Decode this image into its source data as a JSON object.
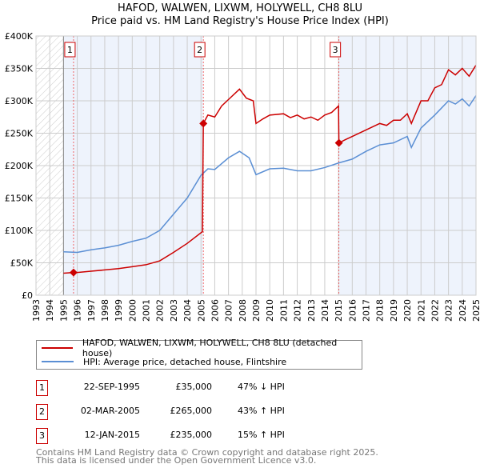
{
  "chart_data": {
    "type": "line",
    "title": "HAFOD, WALWEN, LIXWM, HOLYWELL, CH8 8LU",
    "subtitle": "Price paid vs. HM Land Registry's House Price Index (HPI)",
    "xlim": [
      1993,
      2025
    ],
    "ylim": [
      0,
      400000
    ],
    "x_ticks": [
      "1993",
      "1994",
      "1995",
      "1996",
      "1997",
      "1998",
      "1999",
      "2000",
      "2001",
      "2002",
      "2003",
      "2004",
      "2005",
      "2006",
      "2007",
      "2008",
      "2009",
      "2010",
      "2011",
      "2012",
      "2013",
      "2014",
      "2015",
      "2016",
      "2017",
      "2018",
      "2019",
      "2020",
      "2021",
      "2022",
      "2023",
      "2024",
      "2025"
    ],
    "y_ticks": [
      {
        "v": 0,
        "label": "£0"
      },
      {
        "v": 50000,
        "label": "£50K"
      },
      {
        "v": 100000,
        "label": "£100K"
      },
      {
        "v": 150000,
        "label": "£150K"
      },
      {
        "v": 200000,
        "label": "£200K"
      },
      {
        "v": 250000,
        "label": "£250K"
      },
      {
        "v": 300000,
        "label": "£300K"
      },
      {
        "v": 350000,
        "label": "£350K"
      },
      {
        "v": 400000,
        "label": "£400K"
      }
    ],
    "series": [
      {
        "name": "HAFOD, WALWEN, LIXWM, HOLYWELL, CH8 8LU (detached house)",
        "color": "#cc0000",
        "x": [
          1995,
          1995.73,
          1996,
          1997,
          1998,
          1999,
          2000,
          2001,
          2002,
          2003,
          2004,
          2005.1,
          2005.17,
          2005.5,
          2006,
          2006.5,
          2007,
          2007.8,
          2008.3,
          2008.8,
          2009,
          2009.5,
          2010,
          2011,
          2011.5,
          2012,
          2012.5,
          2013,
          2013.5,
          2014,
          2014.5,
          2015,
          2015.03,
          2015.5,
          2016,
          2017,
          2018,
          2018.5,
          2019,
          2019.5,
          2020,
          2020.3,
          2021,
          2021.5,
          2022,
          2022.5,
          2023,
          2023.5,
          2024,
          2024.5,
          2025
        ],
        "y": [
          34000,
          35000,
          35000,
          37000,
          39000,
          41000,
          44000,
          47000,
          53000,
          66000,
          80000,
          98000,
          265000,
          278000,
          275000,
          292000,
          302000,
          318000,
          304000,
          300000,
          265000,
          272000,
          278000,
          280000,
          274000,
          278000,
          272000,
          275000,
          270000,
          278000,
          282000,
          292000,
          235000,
          240000,
          245000,
          255000,
          265000,
          262000,
          270000,
          270000,
          280000,
          265000,
          300000,
          300000,
          320000,
          325000,
          348000,
          340000,
          350000,
          338000,
          355000
        ]
      },
      {
        "name": "HPI: Average price, detached house, Flintshire",
        "color": "#5b8fd4",
        "x": [
          1995,
          1996,
          1997,
          1998,
          1999,
          2000,
          2001,
          2002,
          2003,
          2004,
          2005,
          2005.5,
          2006,
          2007,
          2007.8,
          2008.5,
          2009,
          2010,
          2011,
          2012,
          2013,
          2014,
          2015,
          2016,
          2017,
          2018,
          2019,
          2020,
          2020.3,
          2021,
          2022,
          2023,
          2023.5,
          2024,
          2024.5,
          2025
        ],
        "y": [
          67000,
          66000,
          70000,
          73000,
          77000,
          83000,
          88000,
          100000,
          125000,
          150000,
          185000,
          195000,
          194000,
          212000,
          222000,
          212000,
          186000,
          195000,
          196000,
          192000,
          192000,
          197000,
          204000,
          210000,
          222000,
          232000,
          235000,
          245000,
          228000,
          258000,
          278000,
          300000,
          295000,
          303000,
          292000,
          308000
        ]
      }
    ],
    "sales": [
      {
        "n": "1",
        "x": 1995.73,
        "y": 35000,
        "date": "22-SEP-1995",
        "price": "£35,000",
        "hpi": "47% ↓ HPI"
      },
      {
        "n": "2",
        "x": 2005.17,
        "y": 265000,
        "date": "02-MAR-2005",
        "price": "£265,000",
        "hpi": "43% ↑ HPI"
      },
      {
        "n": "3",
        "x": 2015.03,
        "y": 235000,
        "date": "12-JAN-2015",
        "price": "£235,000",
        "hpi": "15% ↑ HPI"
      }
    ]
  },
  "footer": {
    "line1": "Contains HM Land Registry data © Crown copyright and database right 2025.",
    "line2": "This data is licensed under the Open Government Licence v3.0."
  }
}
